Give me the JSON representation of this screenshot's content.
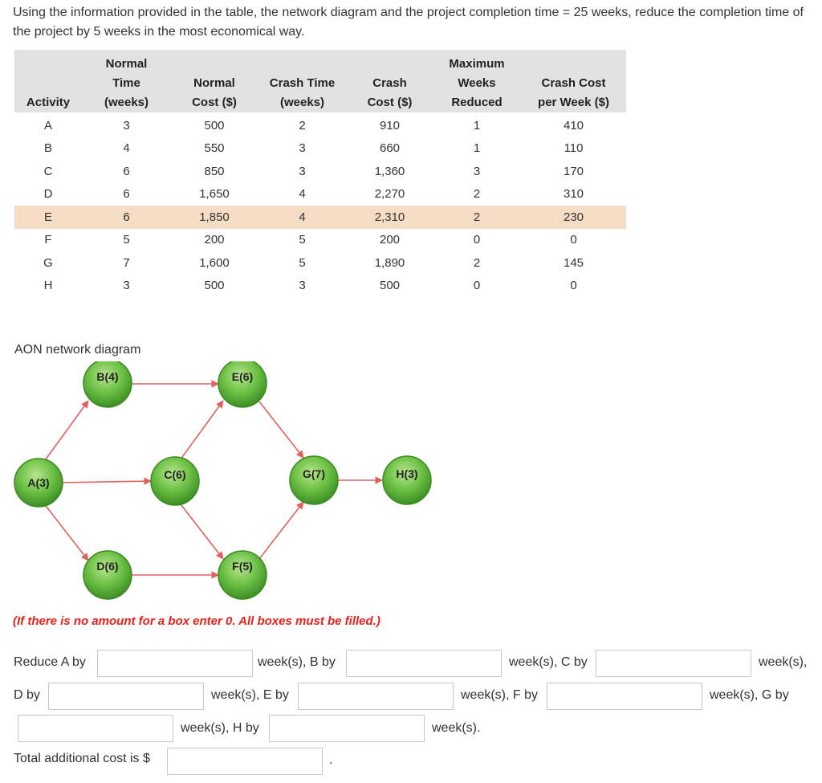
{
  "question": "Using the information provided in the table, the network diagram and the project completion time = 25 weeks, reduce the completion time of the project by 5 weeks in the most economical way.",
  "table": {
    "headers": [
      [
        "Activity"
      ],
      [
        "Normal",
        "Time",
        "(weeks)"
      ],
      [
        "Normal",
        "Cost ($)"
      ],
      [
        "Crash Time",
        "(weeks)"
      ],
      [
        "Crash",
        "Cost ($)"
      ],
      [
        "Maximum",
        "Weeks",
        "Reduced"
      ],
      [
        "Crash Cost",
        "per Week ($)"
      ]
    ],
    "rows": [
      [
        "A",
        "3",
        "500",
        "2",
        "910",
        "1",
        "410"
      ],
      [
        "B",
        "4",
        "550",
        "3",
        "660",
        "1",
        "110"
      ],
      [
        "C",
        "6",
        "850",
        "3",
        "1,360",
        "3",
        "170"
      ],
      [
        "D",
        "6",
        "1,650",
        "4",
        "2,270",
        "2",
        "310"
      ],
      [
        "E",
        "6",
        "1,850",
        "4",
        "2,310",
        "2",
        "230"
      ],
      [
        "F",
        "5",
        "200",
        "5",
        "200",
        "0",
        "0"
      ],
      [
        "G",
        "7",
        "1,600",
        "5",
        "1,890",
        "2",
        "145"
      ],
      [
        "H",
        "3",
        "500",
        "3",
        "500",
        "0",
        "0"
      ]
    ],
    "highlight_color": "#f5dcc4"
  },
  "diagram": {
    "title": "AON network diagram",
    "nodes": [
      "A(3)",
      "B(4)",
      "C(6)",
      "D(6)",
      "E(6)",
      "F(5)",
      "G(7)",
      "H(3)"
    ],
    "node_color": "#5cb338",
    "arrow_color": "#e06060"
  },
  "note": "(If there is no amount for a box enter 0. All boxes must be filled.)",
  "form": {
    "reduce_a": "Reduce A by",
    "week_b": "week(s), B by",
    "week_c": "week(s), C by",
    "week_end1": "week(s),",
    "d_by": "D by",
    "week_e": "week(s), E by",
    "week_f": "week(s), F by",
    "week_g": "week(s), G by",
    "week_h": "week(s), H by",
    "week_end2": "week(s).",
    "total_cost": "Total additional cost is $",
    "period": "."
  }
}
